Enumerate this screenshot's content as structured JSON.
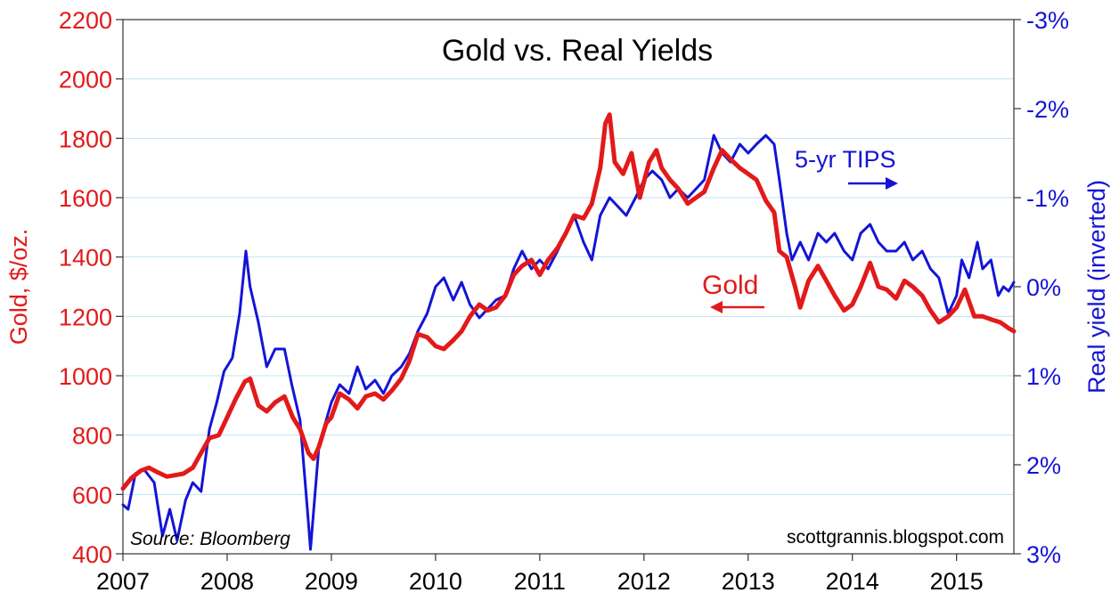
{
  "chart_data": {
    "type": "line",
    "title": "Gold vs. Real Yields",
    "source": "Source: Bloomberg",
    "credit": "scottgrannis.blogspot.com",
    "x_ticks": [
      "2007",
      "2008",
      "2009",
      "2010",
      "2011",
      "2012",
      "2013",
      "2014",
      "2015"
    ],
    "xlim": [
      2007.0,
      2015.55
    ],
    "y_left": {
      "label": "Gold, $/oz.",
      "ticks": [
        "400",
        "600",
        "800",
        "1000",
        "1200",
        "1400",
        "1600",
        "1800",
        "2000",
        "2200"
      ],
      "range": [
        400,
        2200
      ],
      "color": "#e21a1a"
    },
    "y_right": {
      "label": "Real yield (inverted)",
      "ticks": [
        "-3%",
        "-2%",
        "-1%",
        "0%",
        "1%",
        "2%",
        "3%"
      ],
      "range": [
        3,
        -3
      ],
      "color": "#1414d6"
    },
    "series": [
      {
        "name": "Gold",
        "label": "Gold",
        "arrow": "left",
        "axis": "left",
        "color": "#e21a1a",
        "points": [
          [
            2007.0,
            620
          ],
          [
            2007.08,
            655
          ],
          [
            2007.17,
            680
          ],
          [
            2007.25,
            690
          ],
          [
            2007.33,
            675
          ],
          [
            2007.42,
            660
          ],
          [
            2007.5,
            665
          ],
          [
            2007.58,
            670
          ],
          [
            2007.67,
            690
          ],
          [
            2007.75,
            740
          ],
          [
            2007.83,
            790
          ],
          [
            2007.92,
            800
          ],
          [
            2008.0,
            860
          ],
          [
            2008.08,
            920
          ],
          [
            2008.17,
            980
          ],
          [
            2008.22,
            990
          ],
          [
            2008.3,
            900
          ],
          [
            2008.38,
            880
          ],
          [
            2008.46,
            910
          ],
          [
            2008.55,
            930
          ],
          [
            2008.63,
            860
          ],
          [
            2008.7,
            820
          ],
          [
            2008.78,
            740
          ],
          [
            2008.83,
            720
          ],
          [
            2008.88,
            760
          ],
          [
            2008.95,
            840
          ],
          [
            2009.0,
            860
          ],
          [
            2009.08,
            940
          ],
          [
            2009.17,
            920
          ],
          [
            2009.25,
            890
          ],
          [
            2009.33,
            930
          ],
          [
            2009.42,
            940
          ],
          [
            2009.5,
            920
          ],
          [
            2009.58,
            950
          ],
          [
            2009.67,
            990
          ],
          [
            2009.75,
            1050
          ],
          [
            2009.83,
            1140
          ],
          [
            2009.92,
            1130
          ],
          [
            2010.0,
            1100
          ],
          [
            2010.08,
            1090
          ],
          [
            2010.17,
            1120
          ],
          [
            2010.25,
            1150
          ],
          [
            2010.33,
            1200
          ],
          [
            2010.42,
            1240
          ],
          [
            2010.5,
            1220
          ],
          [
            2010.58,
            1230
          ],
          [
            2010.67,
            1270
          ],
          [
            2010.75,
            1340
          ],
          [
            2010.83,
            1370
          ],
          [
            2010.92,
            1390
          ],
          [
            2011.0,
            1340
          ],
          [
            2011.08,
            1390
          ],
          [
            2011.17,
            1430
          ],
          [
            2011.25,
            1480
          ],
          [
            2011.33,
            1540
          ],
          [
            2011.42,
            1530
          ],
          [
            2011.5,
            1580
          ],
          [
            2011.58,
            1700
          ],
          [
            2011.63,
            1850
          ],
          [
            2011.67,
            1880
          ],
          [
            2011.72,
            1720
          ],
          [
            2011.8,
            1680
          ],
          [
            2011.88,
            1750
          ],
          [
            2011.96,
            1600
          ],
          [
            2012.05,
            1720
          ],
          [
            2012.12,
            1760
          ],
          [
            2012.17,
            1700
          ],
          [
            2012.25,
            1660
          ],
          [
            2012.33,
            1630
          ],
          [
            2012.42,
            1580
          ],
          [
            2012.5,
            1600
          ],
          [
            2012.58,
            1620
          ],
          [
            2012.67,
            1700
          ],
          [
            2012.75,
            1760
          ],
          [
            2012.83,
            1730
          ],
          [
            2012.92,
            1700
          ],
          [
            2013.0,
            1680
          ],
          [
            2013.08,
            1660
          ],
          [
            2013.17,
            1590
          ],
          [
            2013.25,
            1550
          ],
          [
            2013.3,
            1420
          ],
          [
            2013.37,
            1400
          ],
          [
            2013.45,
            1300
          ],
          [
            2013.5,
            1230
          ],
          [
            2013.58,
            1320
          ],
          [
            2013.67,
            1370
          ],
          [
            2013.75,
            1320
          ],
          [
            2013.83,
            1270
          ],
          [
            2013.92,
            1220
          ],
          [
            2014.0,
            1240
          ],
          [
            2014.08,
            1300
          ],
          [
            2014.17,
            1380
          ],
          [
            2014.25,
            1300
          ],
          [
            2014.33,
            1290
          ],
          [
            2014.42,
            1260
          ],
          [
            2014.5,
            1320
          ],
          [
            2014.58,
            1300
          ],
          [
            2014.67,
            1270
          ],
          [
            2014.75,
            1220
          ],
          [
            2014.83,
            1180
          ],
          [
            2014.92,
            1200
          ],
          [
            2015.0,
            1230
          ],
          [
            2015.08,
            1290
          ],
          [
            2015.17,
            1200
          ],
          [
            2015.25,
            1200
          ],
          [
            2015.33,
            1190
          ],
          [
            2015.42,
            1180
          ],
          [
            2015.5,
            1160
          ],
          [
            2015.55,
            1150
          ]
        ]
      },
      {
        "name": "5-yr TIPS",
        "label": "5-yr TIPS",
        "arrow": "right",
        "axis": "right",
        "color": "#1414d6",
        "points": [
          [
            2007.0,
            2.45
          ],
          [
            2007.05,
            2.5
          ],
          [
            2007.12,
            2.1
          ],
          [
            2007.2,
            2.05
          ],
          [
            2007.3,
            2.2
          ],
          [
            2007.38,
            2.8
          ],
          [
            2007.45,
            2.5
          ],
          [
            2007.52,
            2.85
          ],
          [
            2007.6,
            2.4
          ],
          [
            2007.67,
            2.2
          ],
          [
            2007.75,
            2.3
          ],
          [
            2007.83,
            1.6
          ],
          [
            2007.9,
            1.3
          ],
          [
            2007.97,
            0.95
          ],
          [
            2008.05,
            0.8
          ],
          [
            2008.12,
            0.3
          ],
          [
            2008.18,
            -0.4
          ],
          [
            2008.22,
            0.0
          ],
          [
            2008.3,
            0.4
          ],
          [
            2008.38,
            0.9
          ],
          [
            2008.46,
            0.7
          ],
          [
            2008.55,
            0.7
          ],
          [
            2008.62,
            1.1
          ],
          [
            2008.7,
            1.5
          ],
          [
            2008.77,
            2.5
          ],
          [
            2008.8,
            2.95
          ],
          [
            2008.88,
            1.8
          ],
          [
            2008.95,
            1.5
          ],
          [
            2009.0,
            1.3
          ],
          [
            2009.08,
            1.1
          ],
          [
            2009.17,
            1.2
          ],
          [
            2009.25,
            0.9
          ],
          [
            2009.33,
            1.15
          ],
          [
            2009.42,
            1.05
          ],
          [
            2009.5,
            1.2
          ],
          [
            2009.58,
            1.0
          ],
          [
            2009.67,
            0.9
          ],
          [
            2009.75,
            0.75
          ],
          [
            2009.83,
            0.5
          ],
          [
            2009.92,
            0.3
          ],
          [
            2010.0,
            0.0
          ],
          [
            2010.08,
            -0.1
          ],
          [
            2010.17,
            0.15
          ],
          [
            2010.25,
            -0.05
          ],
          [
            2010.33,
            0.2
          ],
          [
            2010.42,
            0.35
          ],
          [
            2010.5,
            0.25
          ],
          [
            2010.58,
            0.15
          ],
          [
            2010.67,
            0.1
          ],
          [
            2010.75,
            -0.2
          ],
          [
            2010.83,
            -0.4
          ],
          [
            2010.92,
            -0.2
          ],
          [
            2011.0,
            -0.3
          ],
          [
            2011.08,
            -0.2
          ],
          [
            2011.17,
            -0.4
          ],
          [
            2011.25,
            -0.6
          ],
          [
            2011.33,
            -0.8
          ],
          [
            2011.42,
            -0.5
          ],
          [
            2011.5,
            -0.3
          ],
          [
            2011.58,
            -0.8
          ],
          [
            2011.67,
            -1.0
          ],
          [
            2011.75,
            -0.9
          ],
          [
            2011.83,
            -0.8
          ],
          [
            2011.92,
            -1.0
          ],
          [
            2012.0,
            -1.2
          ],
          [
            2012.08,
            -1.3
          ],
          [
            2012.17,
            -1.2
          ],
          [
            2012.25,
            -1.0
          ],
          [
            2012.33,
            -1.1
          ],
          [
            2012.42,
            -1.0
          ],
          [
            2012.5,
            -1.1
          ],
          [
            2012.58,
            -1.2
          ],
          [
            2012.67,
            -1.7
          ],
          [
            2012.75,
            -1.5
          ],
          [
            2012.83,
            -1.4
          ],
          [
            2012.92,
            -1.6
          ],
          [
            2013.0,
            -1.5
          ],
          [
            2013.08,
            -1.6
          ],
          [
            2013.17,
            -1.7
          ],
          [
            2013.25,
            -1.6
          ],
          [
            2013.3,
            -1.2
          ],
          [
            2013.37,
            -0.6
          ],
          [
            2013.42,
            -0.3
          ],
          [
            2013.5,
            -0.5
          ],
          [
            2013.58,
            -0.3
          ],
          [
            2013.67,
            -0.6
          ],
          [
            2013.75,
            -0.5
          ],
          [
            2013.83,
            -0.6
          ],
          [
            2013.92,
            -0.4
          ],
          [
            2014.0,
            -0.3
          ],
          [
            2014.08,
            -0.6
          ],
          [
            2014.17,
            -0.7
          ],
          [
            2014.25,
            -0.5
          ],
          [
            2014.33,
            -0.4
          ],
          [
            2014.42,
            -0.4
          ],
          [
            2014.5,
            -0.5
          ],
          [
            2014.58,
            -0.3
          ],
          [
            2014.67,
            -0.4
          ],
          [
            2014.75,
            -0.2
          ],
          [
            2014.83,
            -0.1
          ],
          [
            2014.92,
            0.3
          ],
          [
            2015.0,
            0.1
          ],
          [
            2015.05,
            -0.3
          ],
          [
            2015.12,
            -0.1
          ],
          [
            2015.2,
            -0.5
          ],
          [
            2015.25,
            -0.2
          ],
          [
            2015.33,
            -0.3
          ],
          [
            2015.4,
            0.1
          ],
          [
            2015.45,
            0.0
          ],
          [
            2015.5,
            0.05
          ],
          [
            2015.55,
            -0.05
          ]
        ]
      }
    ]
  }
}
